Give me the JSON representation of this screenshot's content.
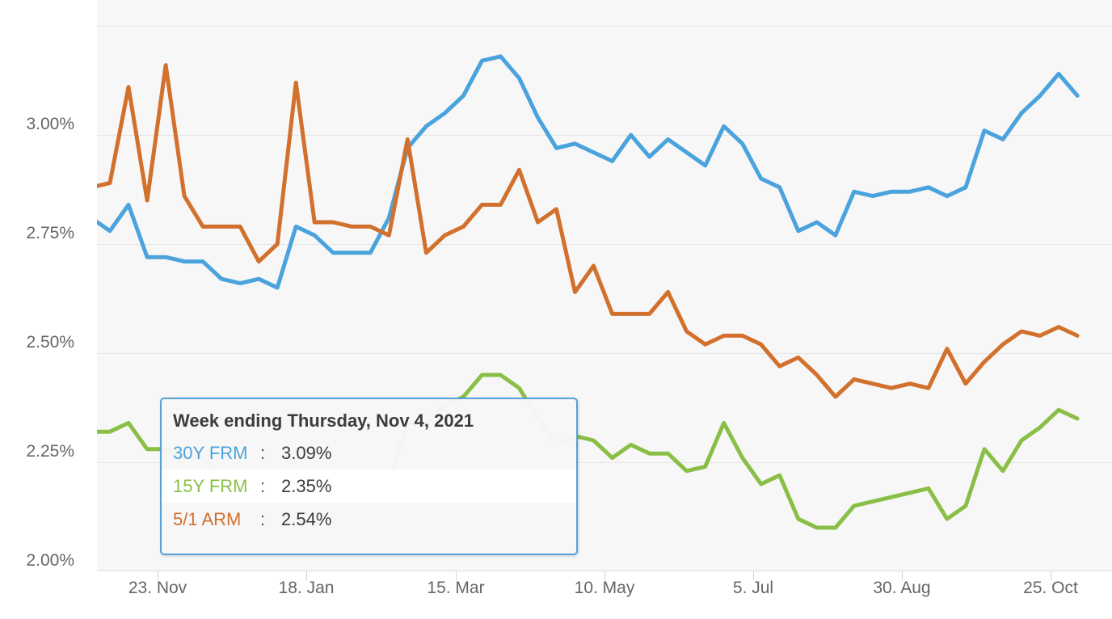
{
  "chart_data": {
    "type": "line",
    "title": "",
    "xlabel": "",
    "ylabel": "",
    "grid": true,
    "legend_position": "none",
    "plot_background": "#f7f7f7",
    "y_axis": {
      "min": 2.0,
      "max": 3.31,
      "unit": "%",
      "gridline_values": [
        3.25,
        3.0,
        2.75,
        2.5,
        2.25
      ],
      "baseline_value": 2.0
    },
    "y_ticks": [
      {
        "label": "3.00%",
        "value": 3.0
      },
      {
        "label": "2.75%",
        "value": 2.75
      },
      {
        "label": "2.50%",
        "value": 2.5
      },
      {
        "label": "2.25%",
        "value": 2.25
      },
      {
        "label": "2.00%",
        "value": 2.0
      }
    ],
    "x_axis": {
      "start_date": "2020-10-29",
      "end_date": "2021-11-04",
      "interval": "weekly (week ending Thursday)"
    },
    "x_ticks": [
      {
        "label": "23. Nov",
        "date": "2020-11-23"
      },
      {
        "label": "18. Jan",
        "date": "2021-01-18"
      },
      {
        "label": "15. Mar",
        "date": "2021-03-15"
      },
      {
        "label": "10. May",
        "date": "2021-05-10"
      },
      {
        "label": "5. Jul",
        "date": "2021-07-05"
      },
      {
        "label": "30. Aug",
        "date": "2021-08-30"
      },
      {
        "label": "25. Oct",
        "date": "2021-10-25"
      }
    ],
    "dates": [
      "2020-10-29",
      "2020-11-05",
      "2020-11-12",
      "2020-11-19",
      "2020-11-26",
      "2020-12-03",
      "2020-12-10",
      "2020-12-17",
      "2020-12-24",
      "2020-12-31",
      "2021-01-07",
      "2021-01-14",
      "2021-01-21",
      "2021-01-28",
      "2021-02-04",
      "2021-02-11",
      "2021-02-18",
      "2021-02-25",
      "2021-03-04",
      "2021-03-11",
      "2021-03-18",
      "2021-03-25",
      "2021-04-01",
      "2021-04-08",
      "2021-04-15",
      "2021-04-22",
      "2021-04-29",
      "2021-05-06",
      "2021-05-13",
      "2021-05-20",
      "2021-05-27",
      "2021-06-03",
      "2021-06-10",
      "2021-06-17",
      "2021-06-24",
      "2021-07-01",
      "2021-07-08",
      "2021-07-15",
      "2021-07-22",
      "2021-07-29",
      "2021-08-05",
      "2021-08-12",
      "2021-08-19",
      "2021-08-26",
      "2021-09-02",
      "2021-09-09",
      "2021-09-16",
      "2021-09-23",
      "2021-09-30",
      "2021-10-07",
      "2021-10-14",
      "2021-10-21",
      "2021-10-28",
      "2021-11-04"
    ],
    "series": [
      {
        "name": "30Y FRM",
        "color": "#4aa3dc",
        "values": [
          2.81,
          2.78,
          2.84,
          2.72,
          2.72,
          2.71,
          2.71,
          2.67,
          2.66,
          2.67,
          2.65,
          2.79,
          2.77,
          2.73,
          2.73,
          2.73,
          2.81,
          2.97,
          3.02,
          3.05,
          3.09,
          3.17,
          3.18,
          3.13,
          3.04,
          2.97,
          2.98,
          2.96,
          2.94,
          3.0,
          2.95,
          2.99,
          2.96,
          2.93,
          3.02,
          2.98,
          2.9,
          2.88,
          2.78,
          2.8,
          2.77,
          2.87,
          2.86,
          2.87,
          2.87,
          2.88,
          2.86,
          2.88,
          3.01,
          2.99,
          3.05,
          3.09,
          3.14,
          3.09
        ]
      },
      {
        "name": "15Y FRM",
        "color": "#8abf47",
        "values": [
          2.32,
          2.32,
          2.34,
          2.28,
          2.28,
          2.26,
          2.26,
          2.21,
          2.19,
          2.17,
          2.16,
          2.23,
          2.21,
          2.2,
          2.21,
          2.19,
          2.21,
          2.34,
          2.34,
          2.38,
          2.4,
          2.45,
          2.45,
          2.42,
          2.35,
          2.29,
          2.31,
          2.3,
          2.26,
          2.29,
          2.27,
          2.27,
          2.23,
          2.24,
          2.34,
          2.26,
          2.2,
          2.22,
          2.12,
          2.1,
          2.1,
          2.15,
          2.16,
          2.17,
          2.18,
          2.19,
          2.12,
          2.15,
          2.28,
          2.23,
          2.3,
          2.33,
          2.37,
          2.35
        ]
      },
      {
        "name": "5/1 ARM",
        "color": "#d2702d",
        "values": [
          2.88,
          2.89,
          3.11,
          2.85,
          3.16,
          2.86,
          2.79,
          2.79,
          2.79,
          2.71,
          2.75,
          3.12,
          2.8,
          2.8,
          2.79,
          2.79,
          2.77,
          2.99,
          2.73,
          2.77,
          2.79,
          2.84,
          2.84,
          2.92,
          2.8,
          2.83,
          2.64,
          2.7,
          2.59,
          2.59,
          2.59,
          2.64,
          2.55,
          2.52,
          2.54,
          2.54,
          2.52,
          2.47,
          2.49,
          2.45,
          2.4,
          2.44,
          2.43,
          2.42,
          2.43,
          2.42,
          2.51,
          2.43,
          2.48,
          2.52,
          2.55,
          2.54,
          2.56,
          2.54
        ]
      }
    ]
  },
  "tooltip": {
    "title": "Week ending Thursday, Nov 4, 2021",
    "border_color": "#56a2d8",
    "rows": [
      {
        "label": "30Y FRM",
        "value": "3.09%",
        "color": "#4aa3dc",
        "highlighted": false
      },
      {
        "label": "15Y FRM",
        "value": "2.35%",
        "color": "#8abf47",
        "highlighted": true
      },
      {
        "label": "5/1 ARM",
        "value": "2.54%",
        "color": "#d2702d",
        "highlighted": false
      }
    ]
  }
}
